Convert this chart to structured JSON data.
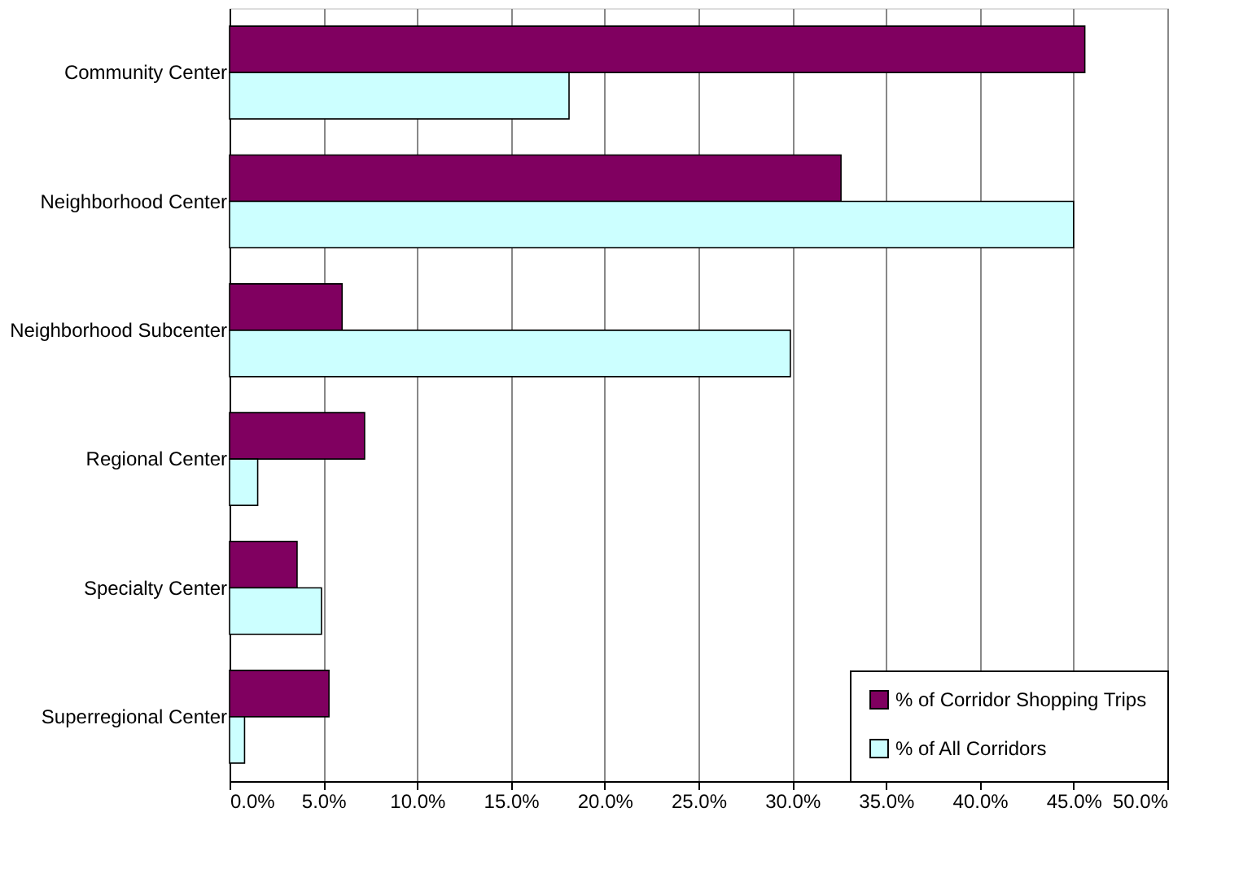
{
  "chart_data": {
    "type": "bar",
    "orientation": "horizontal",
    "categories": [
      "Community Center",
      "Neighborhood Center",
      "Neighborhood Subcenter",
      "Regional Center",
      "Specialty Center",
      "Superregional Center"
    ],
    "series": [
      {
        "name": "% of Corridor Shopping Trips",
        "color": "#800060",
        "values": [
          45.6,
          32.6,
          6.0,
          7.2,
          3.6,
          5.3
        ]
      },
      {
        "name": "% of All Corridors",
        "color": "#ccffff",
        "values": [
          18.1,
          45.0,
          29.9,
          1.5,
          4.9,
          0.8
        ]
      }
    ],
    "xlim": [
      0,
      50
    ],
    "xticks": [
      {
        "value": 0,
        "label": "0.0%"
      },
      {
        "value": 5,
        "label": "5.0%"
      },
      {
        "value": 10,
        "label": "10.0%"
      },
      {
        "value": 15,
        "label": "15.0%"
      },
      {
        "value": 20,
        "label": "20.0%"
      },
      {
        "value": 25,
        "label": "25.0%"
      },
      {
        "value": 30,
        "label": "30.0%"
      },
      {
        "value": 35,
        "label": "35.0%"
      },
      {
        "value": 40,
        "label": "40.0%"
      },
      {
        "value": 45,
        "label": "45.0%"
      },
      {
        "value": 50,
        "label": "50.0%"
      }
    ],
    "grid": "x",
    "legend": "bottom right"
  }
}
